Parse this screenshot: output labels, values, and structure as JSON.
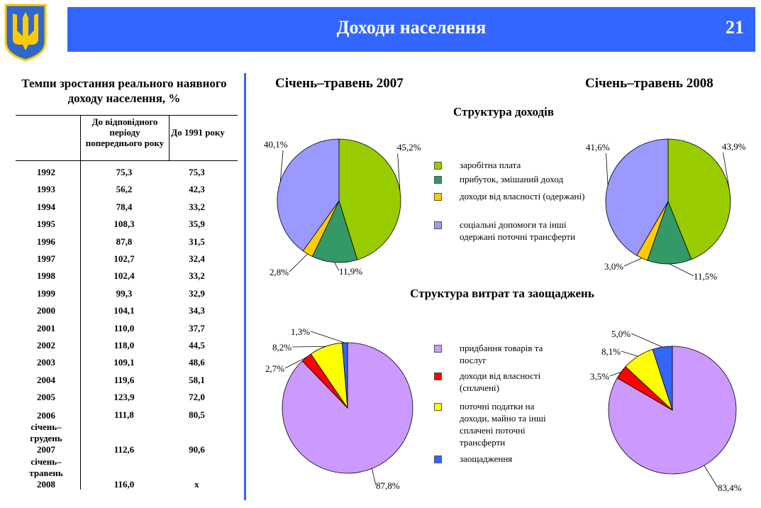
{
  "header": {
    "title": "Доходи населення",
    "page_number": "21"
  },
  "table": {
    "title": "Темпи зростання реального наявного доходу населення, %",
    "columns": [
      "",
      "До відповідного періоду попереднього року",
      "До 1991 року"
    ],
    "rows": [
      {
        "label": "1992",
        "prev": "75,3",
        "y1991": "75,3"
      },
      {
        "label": "1993",
        "prev": "56,2",
        "y1991": "42,3"
      },
      {
        "label": "1994",
        "prev": "78,4",
        "y1991": "33,2"
      },
      {
        "label": "1995",
        "prev": "108,3",
        "y1991": "35,9"
      },
      {
        "label": "1996",
        "prev": "87,8",
        "y1991": "31,5"
      },
      {
        "label": "1997",
        "prev": "102,7",
        "y1991": "32,4"
      },
      {
        "label": "1998",
        "prev": "102,4",
        "y1991": "33,2"
      },
      {
        "label": "1999",
        "prev": "99,3",
        "y1991": "32,9"
      },
      {
        "label": "2000",
        "prev": "104,1",
        "y1991": "34,3"
      },
      {
        "label": "2001",
        "prev": "110,0",
        "y1991": "37,7"
      },
      {
        "label": "2002",
        "prev": "118,0",
        "y1991": "44,5"
      },
      {
        "label": "2003",
        "prev": "109,1",
        "y1991": "48,6"
      },
      {
        "label": "2004",
        "prev": "119,6",
        "y1991": "58,1"
      },
      {
        "label": "2005",
        "prev": "123,9",
        "y1991": "72,0"
      },
      {
        "label": "2006 січень– грудень 2007",
        "prev": "111,8",
        "y1991": "80,5"
      },
      {
        "label": "січень– травень 2008",
        "prev": "112,6",
        "y1991": "90,6"
      },
      {
        "label": "",
        "prev": "116,0",
        "y1991": "x"
      }
    ]
  },
  "period_2007": "Січень–травень 2007",
  "period_2008": "Січень–травень 2008",
  "chart_data": [
    {
      "type": "pie",
      "title": "Структура доходів",
      "period": "Січень–травень 2007",
      "categories": [
        "заробітна плата",
        "прибуток, змішаний доход",
        "доходи від власності (одержані)",
        "соціальні допомоги та інші одержані поточні трансферти"
      ],
      "values": [
        45.2,
        11.9,
        2.8,
        40.1
      ],
      "labels": [
        "45,2%",
        "11,9%",
        "2,8%",
        "40,1%"
      ],
      "colors": [
        "#99cc00",
        "#339966",
        "#ffcc00",
        "#9999ff"
      ]
    },
    {
      "type": "pie",
      "title": "Структура доходів",
      "period": "Січень–травень 2008",
      "categories": [
        "заробітна плата",
        "прибуток, змішаний доход",
        "доходи від власності (одержані)",
        "соціальні допомоги та інші одержані поточні трансферти"
      ],
      "values": [
        43.9,
        11.5,
        3.0,
        41.6
      ],
      "labels": [
        "43,9%",
        "11,5%",
        "3,0%",
        "41,6%"
      ],
      "colors": [
        "#99cc00",
        "#339966",
        "#ffcc00",
        "#9999ff"
      ]
    },
    {
      "type": "pie",
      "title": "Структура витрат та заощаджень",
      "period": "Січень–травень 2007",
      "categories": [
        "придбання товарів та послуг",
        "доходи від власності (сплачені)",
        "поточні податки на доходи, майно та інші сплачені поточні трансферти",
        "заощадження"
      ],
      "values": [
        87.8,
        2.7,
        8.2,
        1.3
      ],
      "labels": [
        "87,8%",
        "2,7%",
        "8,2%",
        "1,3%"
      ],
      "colors": [
        "#cc99ff",
        "#ff0000",
        "#ffff00",
        "#3366ff"
      ]
    },
    {
      "type": "pie",
      "title": "Структура витрат та заощаджень",
      "period": "Січень–травень 2008",
      "categories": [
        "придбання товарів та послуг",
        "доходи від власності (сплачені)",
        "поточні податки на доходи, майно та інші сплачені поточні трансферти",
        "заощадження"
      ],
      "values": [
        83.4,
        3.5,
        8.1,
        5.0
      ],
      "labels": [
        "83,4%",
        "3,5%",
        "8,1%",
        "5,0%"
      ],
      "colors": [
        "#cc99ff",
        "#ff0000",
        "#ffff00",
        "#3366ff"
      ]
    }
  ],
  "icons": {
    "emblem": "ukraine-trident-emblem"
  }
}
